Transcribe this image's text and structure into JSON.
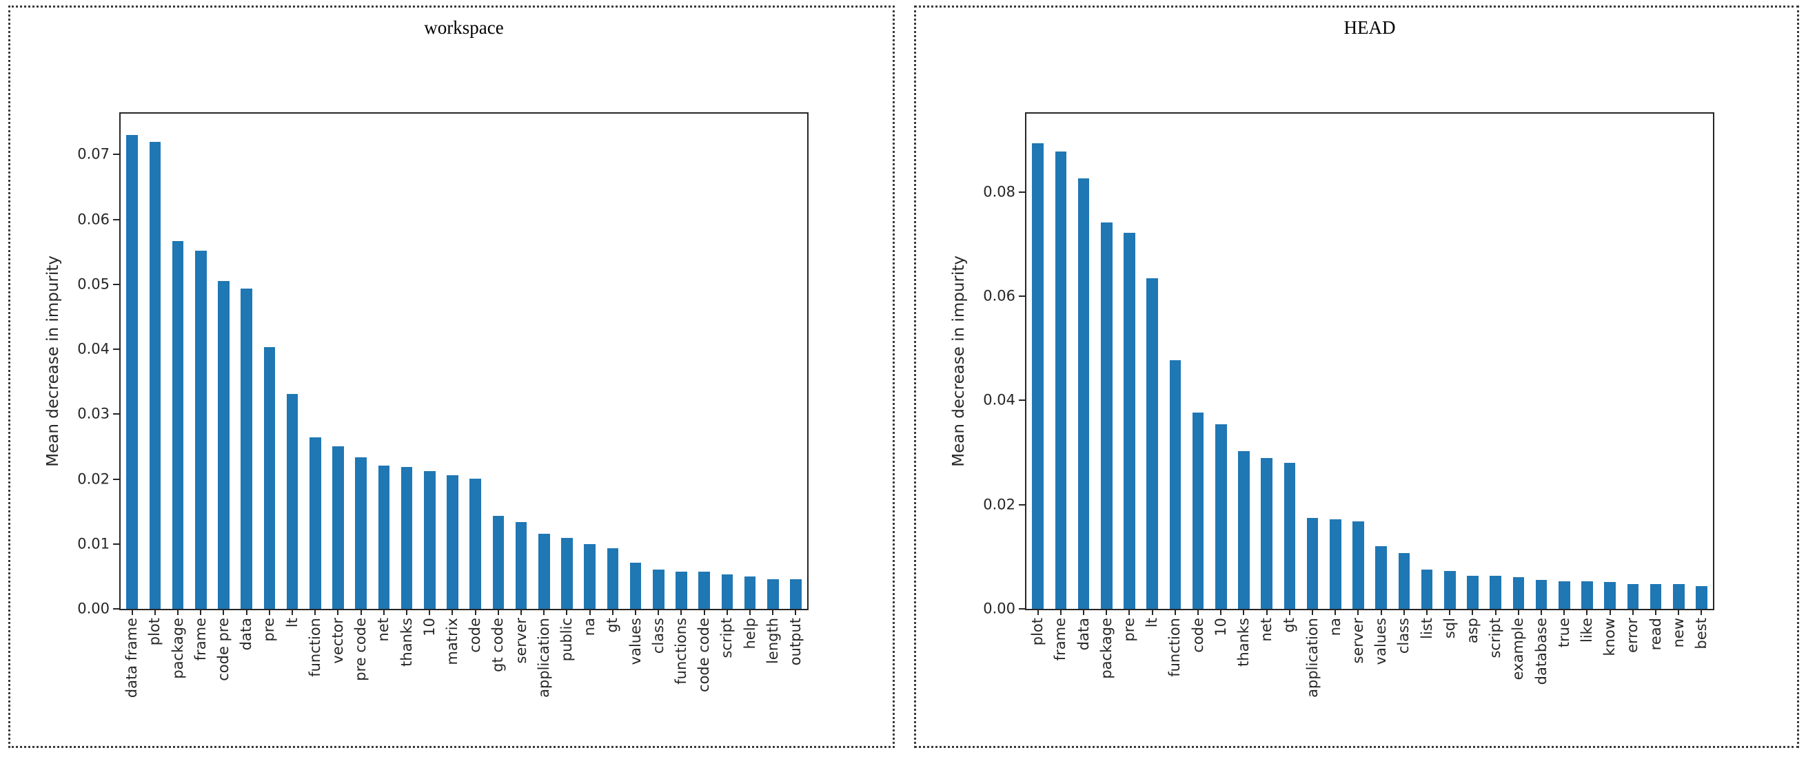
{
  "figure": {
    "background": "#ffffff",
    "panel_border_color": "#3a3a3a",
    "spine_color": "#262626",
    "text_color": "#262626"
  },
  "chart_data": [
    {
      "type": "bar",
      "title": "workspace",
      "xlabel": "",
      "ylabel": "Mean decrease in impurity",
      "bar_color": "#1f77b4",
      "grid": false,
      "legend": null,
      "x_tick_rotation": 90,
      "categories": [
        "data frame",
        "plot",
        "package",
        "frame",
        "code pre",
        "data",
        "pre",
        "lt",
        "function",
        "vector",
        "pre code",
        "net",
        "thanks",
        "10",
        "matrix",
        "code",
        "gt code",
        "server",
        "application",
        "public",
        "na",
        "gt",
        "values",
        "class",
        "functions",
        "code code",
        "script",
        "help",
        "length",
        "output"
      ],
      "values": [
        0.073,
        0.0719,
        0.0567,
        0.0552,
        0.0505,
        0.0494,
        0.0403,
        0.0331,
        0.0264,
        0.025,
        0.0234,
        0.0221,
        0.0219,
        0.0212,
        0.0206,
        0.0201,
        0.0143,
        0.0134,
        0.0116,
        0.0109,
        0.01,
        0.0093,
        0.0071,
        0.0061,
        0.0057,
        0.0057,
        0.0053,
        0.005,
        0.0046,
        0.0046
      ],
      "yticks": [
        0.0,
        0.01,
        0.02,
        0.03,
        0.04,
        0.05,
        0.06,
        0.07
      ],
      "ytick_labels": [
        "0.00",
        "0.01",
        "0.02",
        "0.03",
        "0.04",
        "0.05",
        "0.06",
        "0.07"
      ],
      "ylim": [
        0,
        0.0763
      ]
    },
    {
      "type": "bar",
      "title": "HEAD",
      "xlabel": "",
      "ylabel": "Mean decrease in impurity",
      "bar_color": "#1f77b4",
      "grid": false,
      "legend": null,
      "x_tick_rotation": 90,
      "categories": [
        "plot",
        "frame",
        "data",
        "package",
        "pre",
        "lt",
        "function",
        "code",
        "10",
        "thanks",
        "net",
        "gt",
        "application",
        "na",
        "server",
        "values",
        "class",
        "list",
        "sql",
        "asp",
        "script",
        "example",
        "database",
        "true",
        "like",
        "know",
        "error",
        "read",
        "new",
        "best"
      ],
      "values": [
        0.0893,
        0.0878,
        0.0826,
        0.0741,
        0.0721,
        0.0634,
        0.0477,
        0.0377,
        0.0354,
        0.0302,
        0.0289,
        0.028,
        0.0174,
        0.0172,
        0.0168,
        0.012,
        0.0107,
        0.0075,
        0.0073,
        0.0064,
        0.0064,
        0.0061,
        0.0056,
        0.0053,
        0.0053,
        0.0051,
        0.0048,
        0.0048,
        0.0048,
        0.0043
      ],
      "yticks": [
        0.0,
        0.02,
        0.04,
        0.06,
        0.08
      ],
      "ytick_labels": [
        "0.00",
        "0.02",
        "0.04",
        "0.06",
        "0.08"
      ],
      "ylim": [
        0,
        0.095
      ]
    }
  ]
}
